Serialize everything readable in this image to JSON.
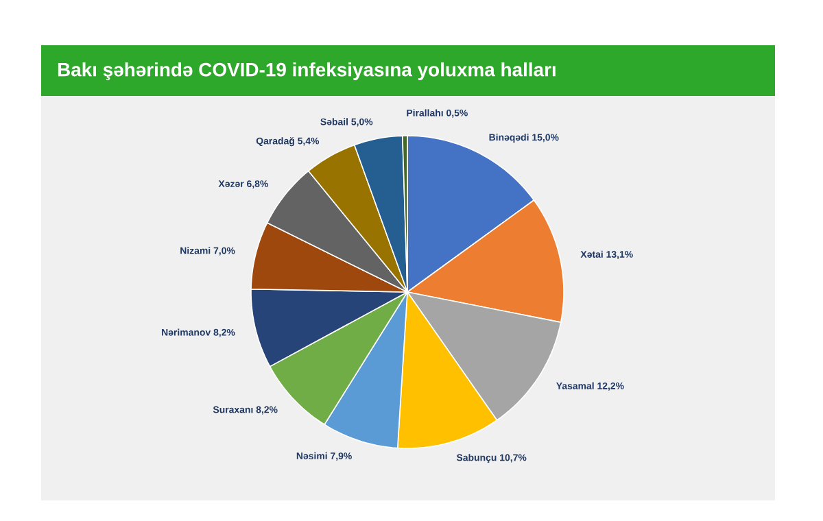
{
  "chart_data": {
    "type": "pie",
    "title": "Bakı şəhərində COVID-19 infeksiyasına yoluxma halları",
    "categories": [
      "Binəqədi",
      "Xətai",
      "Yasamal",
      "Sabunçu",
      "Nəsimi",
      "Suraxanı",
      "Nərimanov",
      "Nizami",
      "Xəzər",
      "Qaradağ",
      "Səbail",
      "Pirallahı"
    ],
    "values": [
      15.0,
      13.1,
      12.2,
      10.7,
      7.9,
      8.2,
      8.2,
      7.0,
      6.8,
      5.4,
      5.0,
      0.5
    ],
    "value_labels": [
      "15,0%",
      "13,1%",
      "12,2%",
      "10,7%",
      "7,9%",
      "8,2%",
      "8,2%",
      "7,0%",
      "6,8%",
      "5,4%",
      "5,0%",
      "0,5%"
    ],
    "colors": [
      "#4472c4",
      "#ed7d31",
      "#a5a5a5",
      "#ffc000",
      "#5b9bd5",
      "#70ad47",
      "#264478",
      "#9e480e",
      "#636363",
      "#997300",
      "#255e91",
      "#43682b"
    ]
  }
}
